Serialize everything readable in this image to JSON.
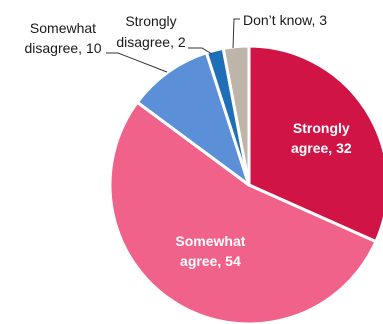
{
  "chart_data": {
    "type": "pie",
    "title": "",
    "start": "12 o'clock",
    "direction": "clockwise",
    "legend": "none",
    "slices": [
      {
        "label_lines": [
          "Strongly",
          "agree, 32"
        ],
        "category": "Strongly agree",
        "value": 32,
        "color": "#d01446",
        "label_placement": "inside"
      },
      {
        "label_lines": [
          "Somewhat",
          "agree, 54"
        ],
        "category": "Somewhat agree",
        "value": 54,
        "color": "#f0628a",
        "label_placement": "inside"
      },
      {
        "label_lines": [
          "Somewhat",
          "disagree, 10"
        ],
        "category": "Somewhat disagree",
        "value": 10,
        "color": "#5b8fd8",
        "label_placement": "outside"
      },
      {
        "label_lines": [
          "Strongly",
          "disagree, 2"
        ],
        "category": "Strongly disagree",
        "value": 2,
        "color": "#1e6fb8",
        "label_placement": "outside"
      },
      {
        "label_lines": [
          "Don’t know, 3"
        ],
        "category": "Don’t know",
        "value": 3,
        "color": "#bdb5aa",
        "label_placement": "outside"
      }
    ]
  }
}
